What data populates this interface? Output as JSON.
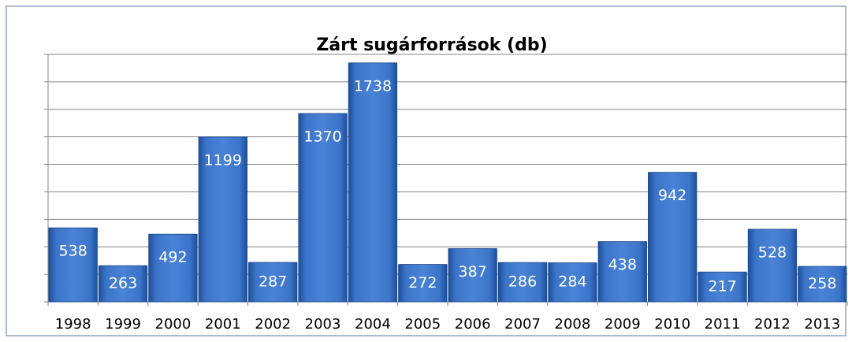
{
  "chart_data": {
    "type": "bar",
    "title": "Zárt sugárforrások (db)",
    "categories": [
      "1998",
      "1999",
      "2000",
      "2001",
      "2002",
      "2003",
      "2004",
      "2005",
      "2006",
      "2007",
      "2008",
      "2009",
      "2010",
      "2011",
      "2012",
      "2013"
    ],
    "values": [
      538,
      263,
      492,
      1199,
      287,
      1370,
      1738,
      272,
      387,
      286,
      284,
      438,
      942,
      217,
      528,
      258
    ],
    "color": "#2f64b3",
    "ylim": [
      0,
      1800
    ],
    "yticks": [
      0,
      200,
      400,
      600,
      800,
      1000,
      1200,
      1400,
      1600,
      1800
    ],
    "grid": true
  }
}
